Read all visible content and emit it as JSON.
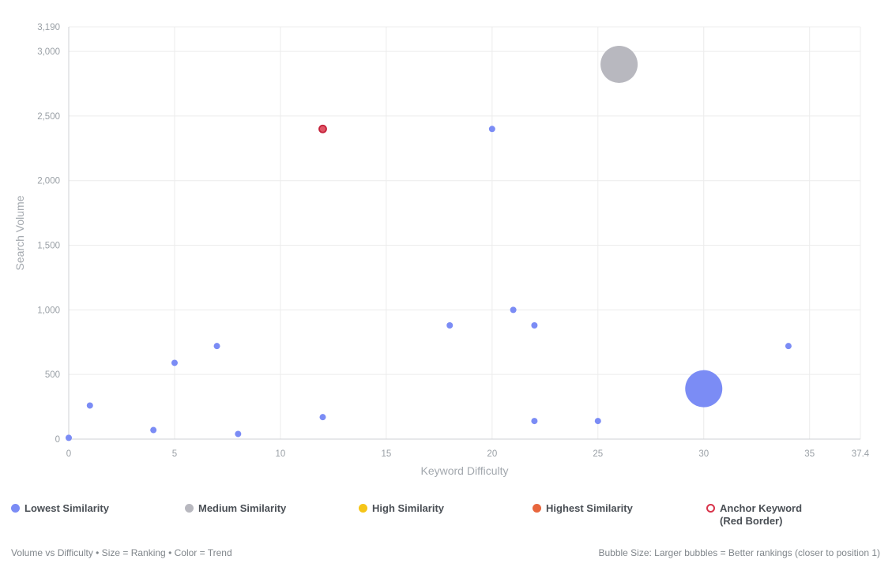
{
  "chart_data": {
    "type": "scatter",
    "xlabel": "Keyword Difficulty",
    "ylabel": "Search Volume",
    "xlim": [
      0,
      37.4
    ],
    "ylim": [
      0,
      3190
    ],
    "x_ticks": [
      "0",
      "5",
      "10",
      "15",
      "20",
      "25",
      "30",
      "35",
      "37.4"
    ],
    "y_ticks": [
      "0",
      "500",
      "1,000",
      "1,500",
      "2,000",
      "2,500",
      "3,000",
      "3,190"
    ],
    "grid": true,
    "series": [
      {
        "name": "Lowest Similarity",
        "color": "#7b8cf5",
        "points": [
          {
            "x": 0,
            "y": 10,
            "size": "small"
          },
          {
            "x": 1,
            "y": 260,
            "size": "small"
          },
          {
            "x": 4,
            "y": 70,
            "size": "small"
          },
          {
            "x": 5,
            "y": 590,
            "size": "small"
          },
          {
            "x": 7,
            "y": 720,
            "size": "small"
          },
          {
            "x": 8,
            "y": 40,
            "size": "small"
          },
          {
            "x": 12,
            "y": 170,
            "size": "small"
          },
          {
            "x": 18,
            "y": 880,
            "size": "small"
          },
          {
            "x": 20,
            "y": 2400,
            "size": "small"
          },
          {
            "x": 21,
            "y": 1000,
            "size": "small"
          },
          {
            "x": 22,
            "y": 880,
            "size": "small"
          },
          {
            "x": 22,
            "y": 140,
            "size": "small"
          },
          {
            "x": 25,
            "y": 140,
            "size": "small"
          },
          {
            "x": 30,
            "y": 390,
            "size": "large"
          },
          {
            "x": 34,
            "y": 720,
            "size": "small"
          }
        ]
      },
      {
        "name": "Medium Similarity",
        "color": "#b8b8bf",
        "points": [
          {
            "x": 26,
            "y": 2900,
            "size": "large"
          }
        ]
      },
      {
        "name": "High Similarity",
        "color": "#f5c518",
        "points": []
      },
      {
        "name": "Highest Similarity",
        "color": "#e8663d",
        "points": []
      },
      {
        "name": "Anchor Keyword",
        "color": "#d8334a",
        "points": [
          {
            "x": 12,
            "y": 2400,
            "size": "small"
          }
        ]
      }
    ]
  },
  "legend": {
    "items": [
      {
        "label": "Lowest Similarity",
        "sublabel": "",
        "color": "#7b8cf5",
        "style": "fill"
      },
      {
        "label": "Medium Similarity",
        "sublabel": "",
        "color": "#b8b8bf",
        "style": "fill"
      },
      {
        "label": "High Similarity",
        "sublabel": "",
        "color": "#f5c518",
        "style": "fill"
      },
      {
        "label": "Highest Similarity",
        "sublabel": "",
        "color": "#e8663d",
        "style": "fill"
      },
      {
        "label": "Anchor Keyword",
        "sublabel": "(Red Border)",
        "color": "#d8334a",
        "style": "ring"
      }
    ]
  },
  "footer": {
    "left": "Volume vs Difficulty • Size = Ranking • Color = Trend",
    "right": "Bubble Size: Larger bubbles = Better rankings (closer to position 1)"
  }
}
